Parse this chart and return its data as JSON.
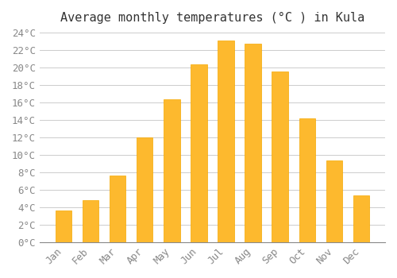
{
  "title": "Average monthly temperatures (°C ) in Kula",
  "months": [
    "Jan",
    "Feb",
    "Mar",
    "Apr",
    "May",
    "Jun",
    "Jul",
    "Aug",
    "Sep",
    "Oct",
    "Nov",
    "Dec"
  ],
  "values": [
    3.6,
    4.8,
    7.6,
    12.0,
    16.4,
    20.4,
    23.1,
    22.7,
    19.5,
    14.2,
    9.4,
    5.4
  ],
  "bar_color": "#FDB92E",
  "bar_edge_color": "#F5A800",
  "background_color": "#FFFFFF",
  "grid_color": "#CCCCCC",
  "ylim": [
    0,
    24
  ],
  "ytick_step": 2,
  "title_fontsize": 11,
  "tick_fontsize": 9,
  "tick_color": "#888888",
  "font_family": "monospace"
}
